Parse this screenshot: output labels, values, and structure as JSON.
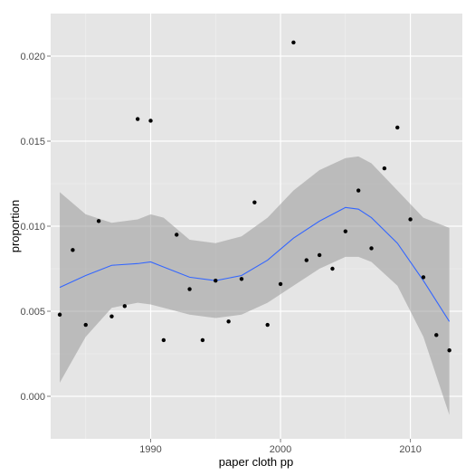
{
  "chart_data": {
    "type": "scatter",
    "xlabel": "paper cloth pp",
    "ylabel": "proportion",
    "xlim": [
      1982.3,
      2014.0
    ],
    "ylim": [
      -0.0025,
      0.0225
    ],
    "x_ticks": [
      1990,
      2000,
      2010
    ],
    "x_tick_labels": [
      "1990",
      "2000",
      "2010"
    ],
    "y_ticks": [
      0.0,
      0.005,
      0.01,
      0.015,
      0.02
    ],
    "y_tick_labels": [
      "0.000",
      "0.005",
      "0.010",
      "0.015",
      "0.020"
    ],
    "grid": true,
    "points": {
      "x": [
        1983,
        1984,
        1985,
        1986,
        1987,
        1988,
        1989,
        1990,
        1991,
        1992,
        1993,
        1994,
        1995,
        1996,
        1997,
        1998,
        1999,
        2000,
        2001,
        2002,
        2003,
        2004,
        2005,
        2006,
        2007,
        2008,
        2009,
        2010,
        2011,
        2012,
        2013
      ],
      "y": [
        0.0048,
        0.0086,
        0.0042,
        0.0103,
        0.0047,
        0.0053,
        0.0163,
        0.0162,
        0.0033,
        0.0095,
        0.0063,
        0.0033,
        0.0068,
        0.0044,
        0.0069,
        0.0114,
        0.0042,
        0.0066,
        0.0208,
        0.008,
        0.0083,
        0.0075,
        0.0097,
        0.0121,
        0.0087,
        0.0134,
        0.0158,
        0.0104,
        0.007,
        0.0036,
        0.0027
      ]
    },
    "smooth": {
      "x": [
        1983,
        1985,
        1987,
        1989,
        1990,
        1991,
        1993,
        1995,
        1997,
        1999,
        2001,
        2003,
        2005,
        2006,
        2007,
        2009,
        2011,
        2013
      ],
      "y": [
        0.0064,
        0.0071,
        0.0077,
        0.0078,
        0.0079,
        0.0076,
        0.007,
        0.0068,
        0.0071,
        0.008,
        0.0093,
        0.0103,
        0.0111,
        0.011,
        0.0105,
        0.009,
        0.0068,
        0.0044
      ],
      "ymin": [
        0.0008,
        0.0035,
        0.0052,
        0.0055,
        0.0054,
        0.0052,
        0.0048,
        0.0046,
        0.0048,
        0.0055,
        0.0065,
        0.0075,
        0.0082,
        0.0082,
        0.0079,
        0.0065,
        0.0035,
        -0.0011
      ],
      "ymax": [
        0.012,
        0.0107,
        0.0102,
        0.0104,
        0.0107,
        0.0105,
        0.0092,
        0.009,
        0.0094,
        0.0105,
        0.0121,
        0.0133,
        0.014,
        0.0141,
        0.0137,
        0.0121,
        0.0105,
        0.0099
      ]
    },
    "colors": {
      "panel": "#e5e5e5",
      "grid_major": "#ffffff",
      "grid_minor": "#f2f2f2",
      "point": "#000000",
      "line": "#3366ff",
      "ribbon": "#999999"
    }
  }
}
